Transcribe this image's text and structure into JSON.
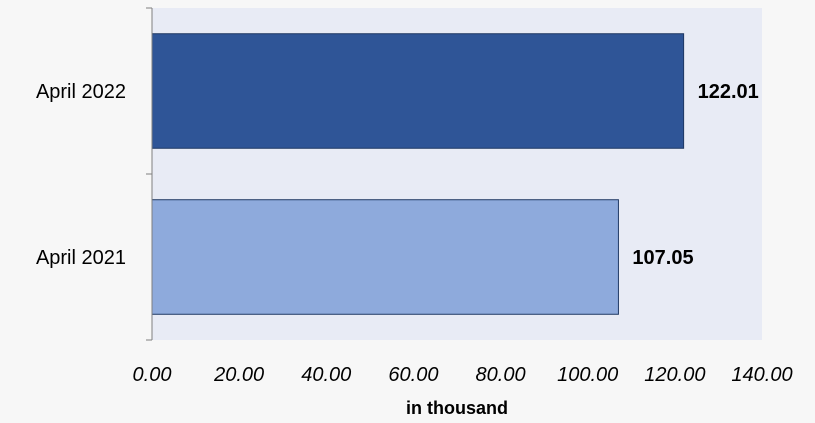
{
  "chart_data": {
    "type": "bar",
    "orientation": "horizontal",
    "categories": [
      "April 2022",
      "April 2021"
    ],
    "values": [
      122.01,
      107.05
    ],
    "data_labels": [
      "122.01",
      "107.05"
    ],
    "bar_colors": [
      "#2f5597",
      "#8eaadc"
    ],
    "title": "",
    "xlabel": "in thousand",
    "ylabel": "",
    "xlim": [
      0,
      140
    ],
    "x_ticks": [
      "0.00",
      "20.00",
      "40.00",
      "60.00",
      "80.00",
      "100.00",
      "120.00",
      "140.00"
    ],
    "grid": false,
    "legend": "none"
  },
  "colors": {
    "plot_background": "#e8ebf5",
    "bar_border": "#1f3864",
    "axis": "#7f7f7f"
  }
}
